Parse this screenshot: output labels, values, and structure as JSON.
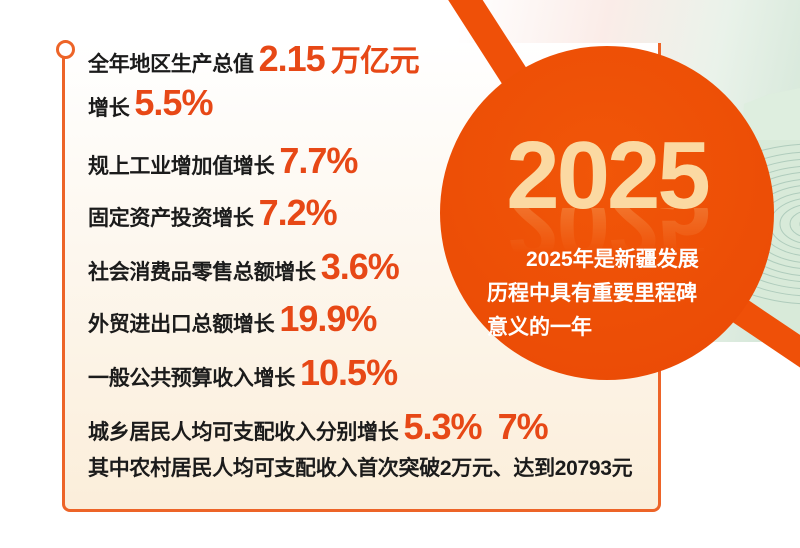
{
  "colors": {
    "circle_orange": "#EF5008",
    "stat_number_orange": "#E74816",
    "panel_border_orange": "#ED6428",
    "year_text_cream": "#FBD9A2",
    "label_black": "#1B1B1B",
    "caption_white": "#FFFFFF",
    "terrace_teal": "#D8EAD9"
  },
  "panel": {
    "rows": [
      {
        "parts": [
          {
            "t": "全年地区生产总值",
            "k": "label"
          },
          {
            "t": "2.15",
            "k": "num"
          },
          {
            "t": "万亿元",
            "k": "unit"
          }
        ]
      },
      {
        "parts": [
          {
            "t": "增长",
            "k": "label"
          },
          {
            "t": "5.5%",
            "k": "num"
          }
        ]
      },
      {
        "parts": [
          {
            "t": "规上工业增加值增长",
            "k": "label"
          },
          {
            "t": "7.7%",
            "k": "num"
          }
        ]
      },
      {
        "parts": [
          {
            "t": "固定资产投资增长",
            "k": "label"
          },
          {
            "t": "7.2%",
            "k": "num"
          }
        ]
      },
      {
        "parts": [
          {
            "t": "社会消费品零售总额增长",
            "k": "label"
          },
          {
            "t": "3.6%",
            "k": "num"
          }
        ]
      },
      {
        "parts": [
          {
            "t": "外贸进出口总额增长",
            "k": "label"
          },
          {
            "t": "19.9%",
            "k": "num"
          }
        ]
      },
      {
        "parts": [
          {
            "t": "一般公共预算收入增长",
            "k": "label"
          },
          {
            "t": "10.5%",
            "k": "num"
          }
        ]
      },
      {
        "parts": [
          {
            "t": "城乡居民人均可支配收入分别增长",
            "k": "label"
          },
          {
            "t": "5.3%",
            "k": "num"
          },
          {
            "t": "7%",
            "k": "num"
          }
        ]
      },
      {
        "parts": [
          {
            "t": "其中农村居民人均可支配收入首次突破2万元、达到20793元",
            "k": "label"
          }
        ]
      }
    ]
  },
  "badge": {
    "year": "2025",
    "caption_lines": [
      "2025年是新疆发展",
      "历程中具有重要里程碑",
      "意义的一年"
    ]
  },
  "chart_data": {
    "type": "table",
    "title": "2025年是新疆发展历程中具有重要里程碑意义的一年",
    "items": [
      {
        "label": "全年地区生产总值",
        "value": 2.15,
        "unit": "万亿元"
      },
      {
        "label": "全年地区生产总值增长",
        "value": 5.5,
        "unit": "%"
      },
      {
        "label": "规上工业增加值增长",
        "value": 7.7,
        "unit": "%"
      },
      {
        "label": "固定资产投资增长",
        "value": 7.2,
        "unit": "%"
      },
      {
        "label": "社会消费品零售总额增长",
        "value": 3.6,
        "unit": "%"
      },
      {
        "label": "外贸进出口总额增长",
        "value": 19.9,
        "unit": "%"
      },
      {
        "label": "一般公共预算收入增长",
        "value": 10.5,
        "unit": "%"
      },
      {
        "label": "城镇居民人均可支配收入增长",
        "value": 5.3,
        "unit": "%"
      },
      {
        "label": "农村居民人均可支配收入增长",
        "value": 7,
        "unit": "%"
      },
      {
        "label": "农村居民人均可支配收入",
        "value": 20793,
        "unit": "元"
      }
    ]
  }
}
